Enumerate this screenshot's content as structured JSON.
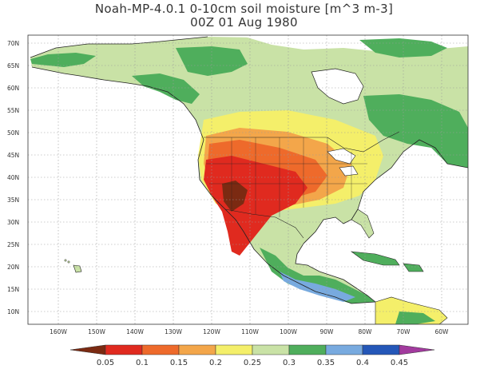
{
  "title": {
    "line1": "Noah-MP-4.0.1 0-10cm soil moisture [m^3 m-3]",
    "line2": "00Z 01 Aug 1980"
  },
  "map": {
    "lon_range": [
      -170,
      -50
    ],
    "lat_range": [
      7,
      72
    ],
    "lat_ticks": [
      "70N",
      "65N",
      "60N",
      "55N",
      "50N",
      "45N",
      "40N",
      "35N",
      "30N",
      "25N",
      "20N",
      "15N",
      "10N"
    ],
    "lon_ticks": [
      "160W",
      "150W",
      "140W",
      "130W",
      "120W",
      "110W",
      "100W",
      "90W",
      "80W",
      "70W",
      "60W"
    ],
    "grid": "dotted",
    "colors": {
      "ocean": "#ffffff",
      "grid": "#9a9a9a"
    }
  },
  "colorbar": {
    "labels": [
      "0.05",
      "0.1",
      "0.15",
      "0.2",
      "0.25",
      "0.3",
      "0.35",
      "0.4",
      "0.45"
    ],
    "colors": [
      "#7b2a12",
      "#e02a1f",
      "#ee6a2b",
      "#f3a64a",
      "#f4ef6a",
      "#c9e2a6",
      "#4fae5c",
      "#78aadf",
      "#2457b8",
      "#a23a9e"
    ]
  }
}
